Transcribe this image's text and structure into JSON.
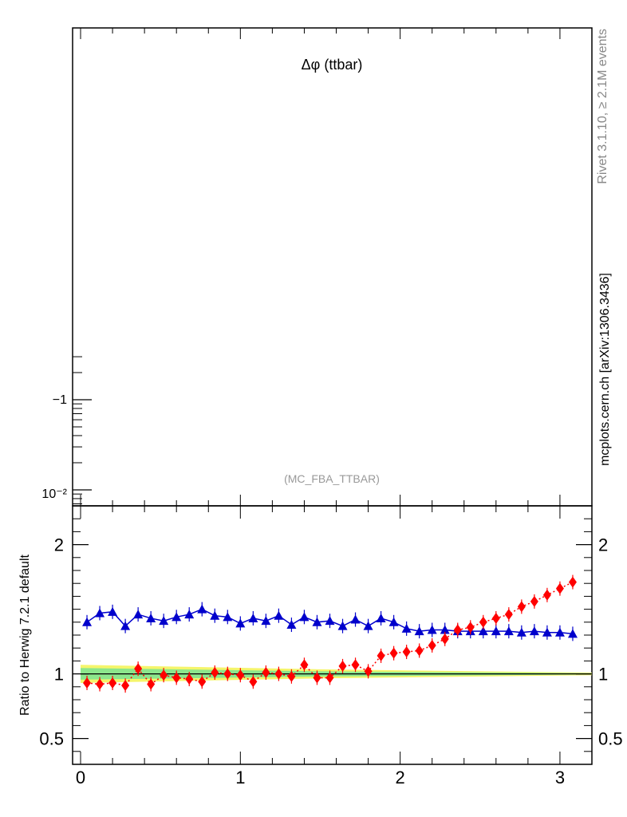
{
  "title": "Δφ (ttbar)",
  "watermark": "(MC_FBA_TTBAR)",
  "side_label_top": "Rivet 3.1.10, ≥ 2.1M events",
  "side_label_bottom": "mcplots.cern.ch [arXiv:1306.3436]",
  "colors": {
    "series_blue": "#0000cc",
    "series_red": "#ff0000",
    "band_yellow": "#f5f56b",
    "band_green": "#8ce68c"
  },
  "chart_data": [
    {
      "type": "line",
      "panel": "main",
      "yscale": "log",
      "ytick_labels": [
        "−1",
        "10⁻²"
      ],
      "series": []
    },
    {
      "type": "line",
      "panel": "ratio",
      "ylabel": "Ratio to Herwig 7.2.1 default",
      "xlim": [
        -0.05,
        3.2
      ],
      "ylim": [
        0.3,
        2.3
      ],
      "xticks": [
        0,
        1,
        2,
        3
      ],
      "yticks": [
        0.5,
        1,
        2
      ],
      "ytick_labels": [
        "0.5",
        "1",
        "2"
      ],
      "x": [
        0.04,
        0.12,
        0.2,
        0.28,
        0.36,
        0.44,
        0.52,
        0.6,
        0.68,
        0.76,
        0.84,
        0.92,
        1.0,
        1.08,
        1.16,
        1.24,
        1.32,
        1.4,
        1.48,
        1.56,
        1.64,
        1.72,
        1.8,
        1.88,
        1.96,
        2.04,
        2.12,
        2.2,
        2.28,
        2.36,
        2.44,
        2.52,
        2.6,
        2.68,
        2.76,
        2.84,
        2.92,
        3.0,
        3.08
      ],
      "series": [
        {
          "color": "blue",
          "marker": "triangle",
          "values": [
            1.4,
            1.47,
            1.48,
            1.37,
            1.46,
            1.43,
            1.41,
            1.44,
            1.46,
            1.5,
            1.45,
            1.44,
            1.39,
            1.43,
            1.41,
            1.45,
            1.38,
            1.44,
            1.4,
            1.41,
            1.37,
            1.42,
            1.37,
            1.43,
            1.4,
            1.35,
            1.33,
            1.34,
            1.34,
            1.33,
            1.33,
            1.33,
            1.33,
            1.33,
            1.32,
            1.33,
            1.32,
            1.32,
            1.31
          ]
        },
        {
          "color": "red",
          "marker": "diamond",
          "values": [
            0.93,
            0.92,
            0.93,
            0.91,
            1.04,
            0.92,
            0.99,
            0.97,
            0.96,
            0.94,
            1.01,
            1.0,
            0.99,
            0.94,
            1.01,
            1.0,
            0.98,
            1.07,
            0.97,
            0.97,
            1.06,
            1.07,
            1.02,
            1.14,
            1.16,
            1.17,
            1.18,
            1.22,
            1.27,
            1.34,
            1.36,
            1.4,
            1.43,
            1.46,
            1.52,
            1.56,
            1.61,
            1.66,
            1.71
          ]
        }
      ]
    }
  ]
}
